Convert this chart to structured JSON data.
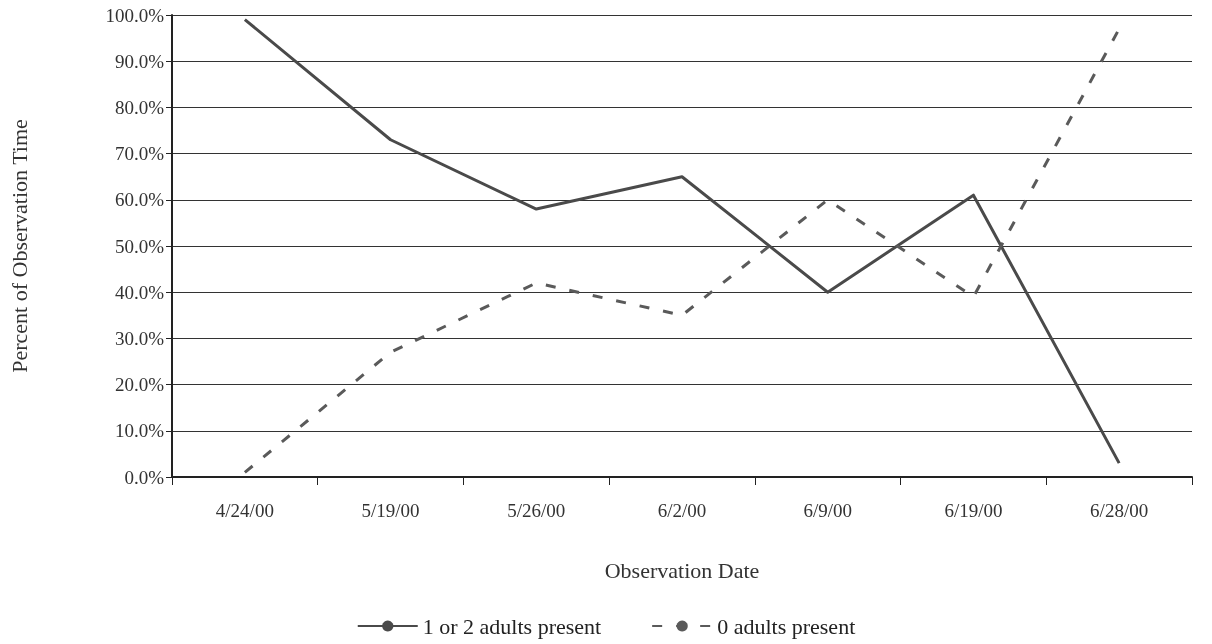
{
  "chart_data": {
    "type": "line",
    "xlabel": "Observation Date",
    "ylabel": "Percent of Observation Time",
    "categories": [
      "4/24/00",
      "5/19/00",
      "5/26/00",
      "6/2/00",
      "6/9/00",
      "6/19/00",
      "6/28/00"
    ],
    "series": [
      {
        "name": "1 or 2 adults present",
        "color": "#4a4a4a",
        "line_style": "solid",
        "values": [
          99,
          73,
          58,
          65,
          40,
          61,
          3
        ]
      },
      {
        "name": "0 adults present",
        "color": "#5a5a5a",
        "line_style": "dashed",
        "values": [
          1,
          27,
          42,
          35,
          60,
          39,
          97
        ]
      }
    ],
    "ylim": [
      0,
      100
    ],
    "yticks": [
      {
        "value": 0,
        "label": "0.0%"
      },
      {
        "value": 10,
        "label": "10.0%"
      },
      {
        "value": 20,
        "label": "20.0%"
      },
      {
        "value": 30,
        "label": "30.0%"
      },
      {
        "value": 40,
        "label": "40.0%"
      },
      {
        "value": 50,
        "label": "50.0%"
      },
      {
        "value": 60,
        "label": "60.0%"
      },
      {
        "value": 70,
        "label": "70.0%"
      },
      {
        "value": 80,
        "label": "80.0%"
      },
      {
        "value": 90,
        "label": "90.0%"
      },
      {
        "value": 100,
        "label": "100.0%"
      }
    ],
    "grid": "y",
    "legend": "bottom",
    "marker": "none"
  }
}
